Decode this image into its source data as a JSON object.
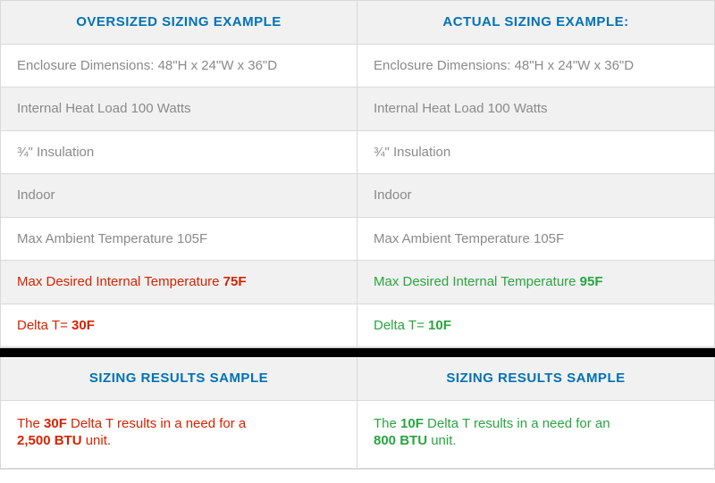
{
  "table1": {
    "headers": {
      "left": "OVERSIZED SIZING EXAMPLE",
      "right": "ACTUAL SIZING EXAMPLE:"
    },
    "rows": [
      {
        "left": "Enclosure Dimensions:  48\"H x 24\"W x 36\"D",
        "right": "Enclosure Dimensions:  48\"H x 24\"W x 36\"D",
        "bg": "white"
      },
      {
        "left": "Internal Heat Load 100 Watts",
        "right": "Internal Heat Load 100 Watts",
        "bg": "grey"
      },
      {
        "left": "¾\" Insulation",
        "right": "¾\" Insulation",
        "bg": "white"
      },
      {
        "left": "Indoor",
        "right": "Indoor",
        "bg": "grey"
      },
      {
        "left": "Max Ambient Temperature 105F",
        "right": "Max Ambient Temperature 105F",
        "bg": "white"
      }
    ],
    "temp_row": {
      "left_prefix": "Max Desired Internal Temperature ",
      "left_value": "75F",
      "right_prefix": "Max Desired Internal Temperature ",
      "right_value": "95F"
    },
    "delta_row": {
      "left_prefix": "Delta T= ",
      "left_value": "30F",
      "right_prefix": "Delta T= ",
      "right_value": "10F"
    }
  },
  "table2": {
    "headers": {
      "left": "SIZING RESULTS SAMPLE",
      "right": "SIZING RESULTS SAMPLE"
    },
    "results": {
      "left": {
        "p1a": "The ",
        "p1b": "30F",
        "p1c": " Delta T results in a need for a",
        "p2a": "2,500 BTU",
        "p2b": " unit."
      },
      "right": {
        "p1a": "The ",
        "p1b": "10F",
        "p1c": " Delta T results in a need for an",
        "p2a": "800 BTU",
        "p2b": " unit."
      }
    }
  },
  "colors": {
    "header_blue": "#0072b5",
    "red": "#d52300",
    "green": "#2aa441",
    "grey_bg": "#f1f1f1",
    "text_grey": "#8a8a8a",
    "border": "#d9d9d9",
    "divider": "#000000"
  }
}
